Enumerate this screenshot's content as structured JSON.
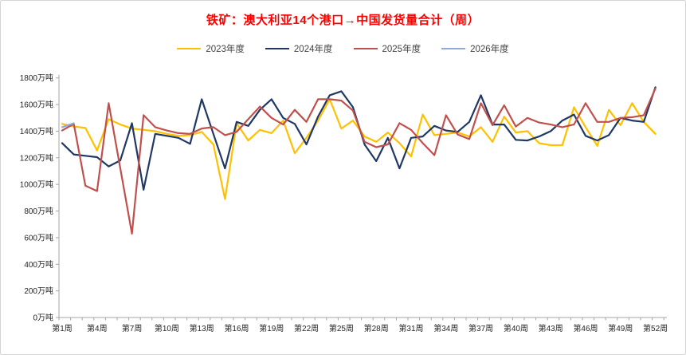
{
  "chart_data": {
    "type": "line",
    "title": "铁矿：澳大利亚14个港口→中国发货量合计（周）",
    "title_color": "#ff0000",
    "legend_position": "top",
    "legend_text_color": "#444444",
    "axis_color": "#a6a6a6",
    "grid": "off",
    "ylabel_suffix": "万吨",
    "ylim": [
      0,
      1800
    ],
    "ytick_step": 200,
    "x_unit": "周",
    "categories": [
      1,
      2,
      3,
      4,
      5,
      6,
      7,
      8,
      9,
      10,
      11,
      12,
      13,
      14,
      15,
      16,
      17,
      18,
      19,
      20,
      21,
      22,
      23,
      24,
      25,
      26,
      27,
      28,
      29,
      30,
      31,
      32,
      33,
      34,
      35,
      36,
      37,
      38,
      39,
      40,
      41,
      42,
      43,
      44,
      45,
      46,
      47,
      48,
      49,
      50,
      51,
      52
    ],
    "x_tick_weeks": [
      1,
      4,
      7,
      10,
      13,
      16,
      19,
      22,
      25,
      28,
      31,
      34,
      37,
      40,
      43,
      46,
      49,
      52
    ],
    "x_tick_labels": [
      "第1周",
      "第4周",
      "第7周",
      "第10周",
      "第13周",
      "第16周",
      "第19周",
      "第22周",
      "第25周",
      "第28周",
      "第31周",
      "第34周",
      "第37周",
      "第40周",
      "第43周",
      "第46周",
      "第49周",
      "第52周"
    ],
    "series": [
      {
        "name": "2023年度",
        "color": "#ffc000",
        "values": [
          1455,
          1435,
          1425,
          1255,
          1490,
          1450,
          1420,
          1410,
          1400,
          1380,
          1365,
          1370,
          1395,
          1300,
          890,
          1460,
          1330,
          1410,
          1385,
          1480,
          1235,
          1350,
          1480,
          1640,
          1420,
          1480,
          1360,
          1320,
          1390,
          1310,
          1210,
          1525,
          1370,
          1380,
          1390,
          1360,
          1430,
          1320,
          1510,
          1390,
          1400,
          1310,
          1295,
          1295,
          1580,
          1430,
          1290,
          1560,
          1445,
          1610,
          1470,
          1380
        ]
      },
      {
        "name": "2024年度",
        "color": "#1f3864",
        "values": [
          1310,
          1225,
          1215,
          1205,
          1135,
          1180,
          1460,
          960,
          1380,
          1365,
          1350,
          1305,
          1640,
          1380,
          1120,
          1470,
          1440,
          1560,
          1640,
          1500,
          1455,
          1300,
          1510,
          1670,
          1700,
          1580,
          1300,
          1175,
          1350,
          1120,
          1350,
          1360,
          1440,
          1405,
          1395,
          1470,
          1670,
          1450,
          1450,
          1335,
          1330,
          1360,
          1400,
          1480,
          1525,
          1365,
          1330,
          1370,
          1500,
          1480,
          1470,
          1730
        ]
      },
      {
        "name": "2025年度",
        "color": "#c0504d",
        "values": [
          1405,
          1455,
          990,
          950,
          1610,
          1120,
          630,
          1520,
          1430,
          1405,
          1385,
          1380,
          1420,
          1430,
          1370,
          1395,
          1490,
          1585,
          1500,
          1450,
          1560,
          1470,
          1640,
          1640,
          1630,
          1555,
          1320,
          1280,
          1300,
          1460,
          1410,
          1310,
          1220,
          1520,
          1375,
          1340,
          1610,
          1445,
          1595,
          1435,
          1500,
          1465,
          1450,
          1430,
          1450,
          1610,
          1470,
          1470,
          1500,
          1505,
          1520,
          1720
        ]
      },
      {
        "name": "2026年度",
        "color": "#8faadc",
        "values": [
          1430,
          1460
        ]
      }
    ]
  }
}
